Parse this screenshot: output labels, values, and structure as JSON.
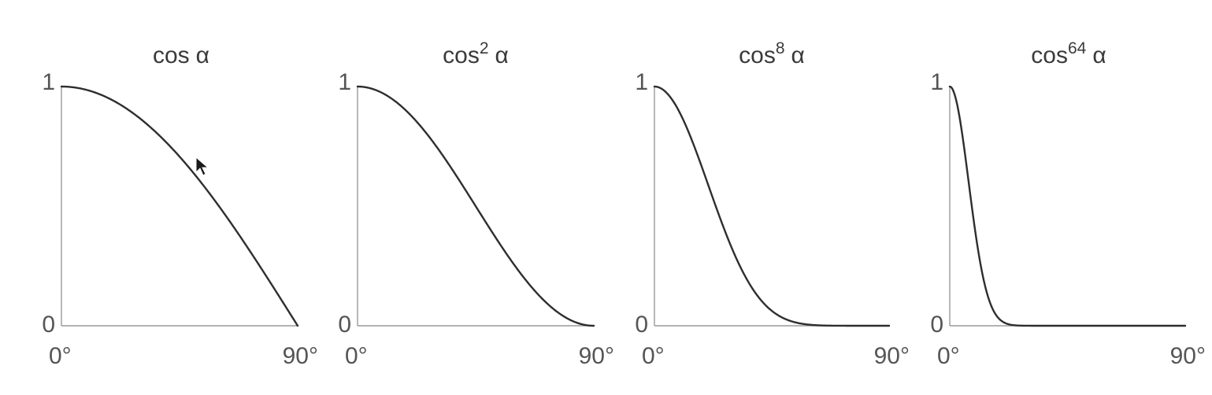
{
  "chart_data": [
    {
      "type": "line",
      "title": {
        "base": "cos",
        "exponent": "",
        "symbol": "α"
      },
      "exponent_value": 1,
      "xlim": [
        0,
        90
      ],
      "ylim": [
        0,
        1
      ],
      "x_tick_labels": [
        "0°",
        "90°"
      ],
      "y_tick_labels": [
        "0",
        "1"
      ],
      "series": [
        {
          "x": [
            0,
            10,
            20,
            30,
            40,
            50,
            60,
            70,
            80,
            90
          ],
          "values": [
            1.0,
            0.985,
            0.94,
            0.866,
            0.766,
            0.643,
            0.5,
            0.342,
            0.174,
            0.0
          ]
        }
      ]
    },
    {
      "type": "line",
      "title": {
        "base": "cos",
        "exponent": "2",
        "symbol": "α"
      },
      "exponent_value": 2,
      "xlim": [
        0,
        90
      ],
      "ylim": [
        0,
        1
      ],
      "x_tick_labels": [
        "0°",
        "90°"
      ],
      "y_tick_labels": [
        "0",
        "1"
      ],
      "series": [
        {
          "x": [
            0,
            10,
            20,
            30,
            40,
            50,
            60,
            70,
            80,
            90
          ],
          "values": [
            1.0,
            0.97,
            0.883,
            0.75,
            0.587,
            0.413,
            0.25,
            0.117,
            0.03,
            0.0
          ]
        }
      ]
    },
    {
      "type": "line",
      "title": {
        "base": "cos",
        "exponent": "8",
        "symbol": "α"
      },
      "exponent_value": 8,
      "xlim": [
        0,
        90
      ],
      "ylim": [
        0,
        1
      ],
      "x_tick_labels": [
        "0°",
        "90°"
      ],
      "y_tick_labels": [
        "0",
        "1"
      ],
      "series": [
        {
          "x": [
            0,
            10,
            20,
            30,
            40,
            50,
            60,
            70,
            80,
            90
          ],
          "values": [
            1.0,
            0.885,
            0.608,
            0.316,
            0.118,
            0.029,
            0.004,
            0.0,
            0.0,
            0.0
          ]
        }
      ]
    },
    {
      "type": "line",
      "title": {
        "base": "cos",
        "exponent": "64",
        "symbol": "α"
      },
      "exponent_value": 64,
      "xlim": [
        0,
        90
      ],
      "ylim": [
        0,
        1
      ],
      "x_tick_labels": [
        "0°",
        "90°"
      ],
      "y_tick_labels": [
        "0",
        "1"
      ],
      "series": [
        {
          "x": [
            0,
            5,
            10,
            15,
            20,
            25,
            30,
            45,
            60,
            90
          ],
          "values": [
            1.0,
            0.784,
            0.377,
            0.109,
            0.019,
            0.002,
            0.0,
            0.0,
            0.0,
            0.0
          ]
        }
      ]
    }
  ],
  "colors": {
    "curve": "#2e2e2e",
    "axis": "#9a9a9a",
    "text": "#3a3a3a"
  },
  "cursor": {
    "icon": "mouse-pointer-icon"
  }
}
